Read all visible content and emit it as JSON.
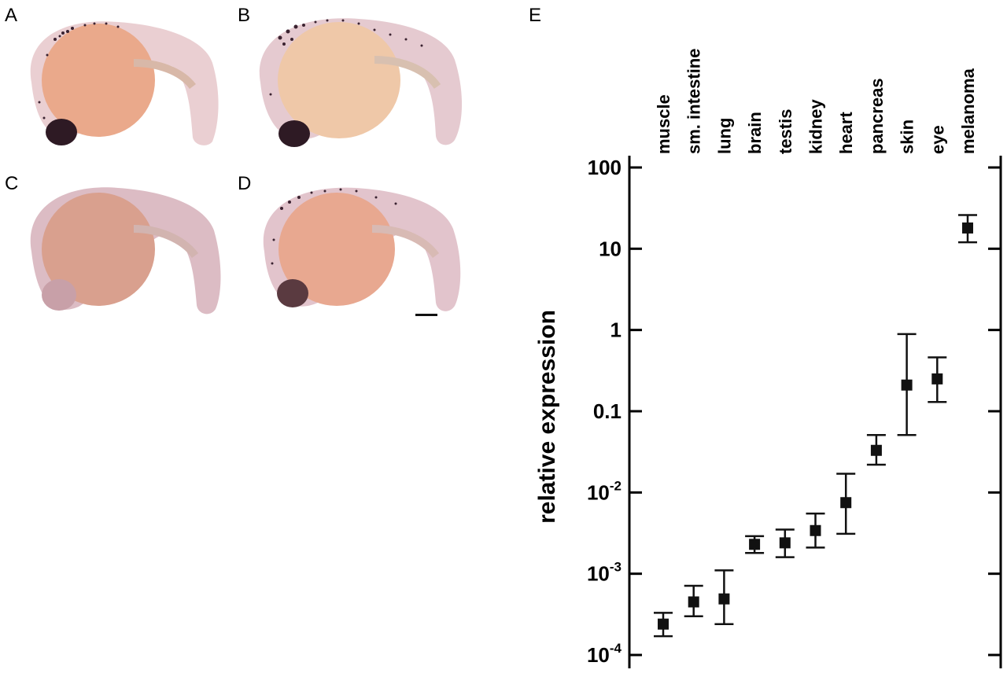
{
  "panels": {
    "a": "A",
    "b": "B",
    "c": "C",
    "d": "D",
    "e": "E"
  },
  "chart_data": {
    "type": "scatter",
    "panel": "E",
    "ylabel": "relative expression",
    "yscale": "log",
    "ylim": [
      0.0001,
      100
    ],
    "yticks": [
      {
        "value": 100,
        "base": "100",
        "exp": ""
      },
      {
        "value": 10,
        "base": "10",
        "exp": ""
      },
      {
        "value": 1,
        "base": "1",
        "exp": ""
      },
      {
        "value": 0.1,
        "base": "0.1",
        "exp": ""
      },
      {
        "value": 0.01,
        "base": "10",
        "exp": "-2"
      },
      {
        "value": 0.001,
        "base": "10",
        "exp": "-3"
      },
      {
        "value": 0.0001,
        "base": "10",
        "exp": "-4"
      }
    ],
    "categories": [
      "muscle",
      "sm. intestine",
      "lung",
      "brain",
      "testis",
      "kidney",
      "heart",
      "pancreas",
      "skin",
      "eye",
      "melanoma"
    ],
    "values": [
      0.00024,
      0.00045,
      0.00049,
      0.0023,
      0.0024,
      0.0034,
      0.0075,
      0.033,
      0.21,
      0.25,
      18
    ],
    "err_low": [
      0.00017,
      0.0003,
      0.00024,
      0.0018,
      0.0016,
      0.0021,
      0.0031,
      0.022,
      0.051,
      0.13,
      12
    ],
    "err_high": [
      0.00033,
      0.00071,
      0.0011,
      0.0029,
      0.0035,
      0.0055,
      0.017,
      0.051,
      0.89,
      0.46,
      26
    ],
    "grid": false,
    "legend": "none"
  },
  "colors": {
    "marker": "#111111",
    "embryo_body": "#e8cdd0",
    "yolk": "#e9a98a",
    "pigment": "#3a2230"
  }
}
